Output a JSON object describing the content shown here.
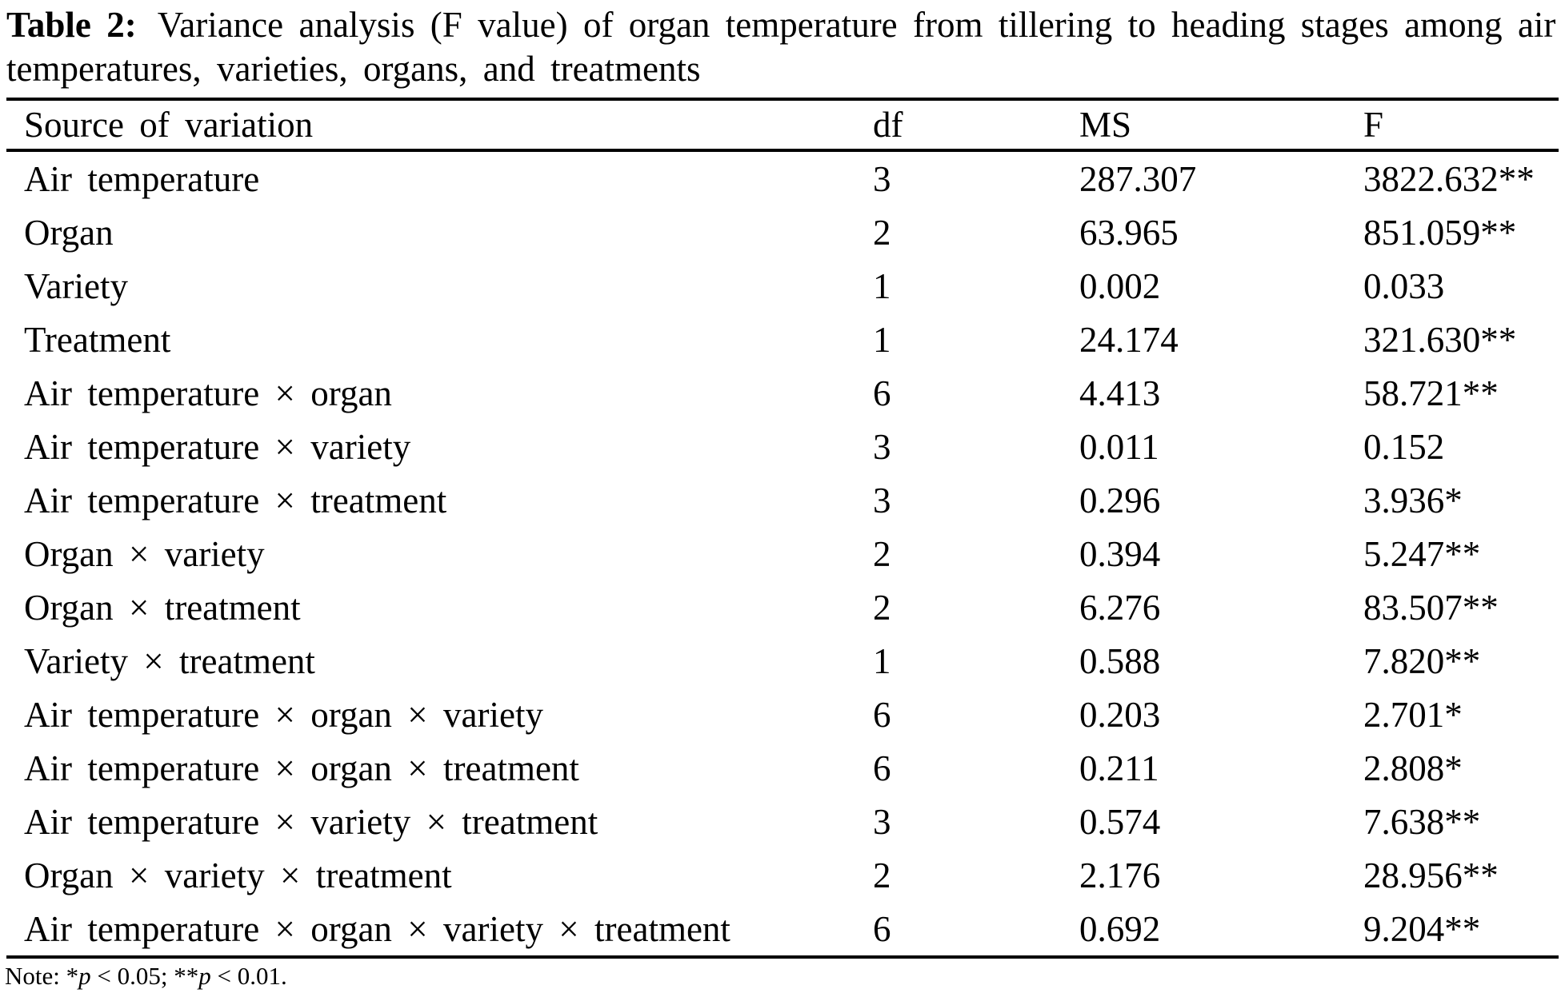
{
  "caption": {
    "label": "Table 2:",
    "line1": "Variance analysis (F value) of organ temperature from tillering to heading stages among air",
    "line2": "temperatures, varieties, organs, and treatments"
  },
  "table": {
    "headers": {
      "source": "Source of variation",
      "df": "df",
      "ms": "MS",
      "f": "F"
    },
    "rows": [
      {
        "source": "Air temperature",
        "df": "3",
        "ms": "287.307",
        "f": "3822.632**"
      },
      {
        "source": "Organ",
        "df": "2",
        "ms": "63.965",
        "f": "851.059**"
      },
      {
        "source": "Variety",
        "df": "1",
        "ms": "0.002",
        "f": "0.033"
      },
      {
        "source": "Treatment",
        "df": "1",
        "ms": "24.174",
        "f": "321.630**"
      },
      {
        "source": "Air temperature × organ",
        "df": "6",
        "ms": "4.413",
        "f": "58.721**"
      },
      {
        "source": "Air temperature × variety",
        "df": "3",
        "ms": "0.011",
        "f": "0.152"
      },
      {
        "source": "Air temperature × treatment",
        "df": "3",
        "ms": "0.296",
        "f": "3.936*"
      },
      {
        "source": "Organ × variety",
        "df": "2",
        "ms": "0.394",
        "f": "5.247**"
      },
      {
        "source": "Organ × treatment",
        "df": "2",
        "ms": "6.276",
        "f": "83.507**"
      },
      {
        "source": "Variety × treatment",
        "df": "1",
        "ms": "0.588",
        "f": "7.820**"
      },
      {
        "source": "Air temperature × organ × variety",
        "df": "6",
        "ms": "0.203",
        "f": "2.701*"
      },
      {
        "source": "Air temperature × organ × treatment",
        "df": "6",
        "ms": "0.211",
        "f": "2.808*"
      },
      {
        "source": "Air temperature × variety × treatment",
        "df": "3",
        "ms": "0.574",
        "f": "7.638**"
      },
      {
        "source": "Organ × variety × treatment",
        "df": "2",
        "ms": "2.176",
        "f": "28.956**"
      },
      {
        "source": "Air temperature × organ × variety × treatment",
        "df": "6",
        "ms": "0.692",
        "f": "9.204**"
      }
    ]
  },
  "note": {
    "prefix": "Note: *",
    "p1": "p",
    "mid1": " < 0.05; **",
    "p2": "p",
    "mid2": " < 0.01."
  }
}
